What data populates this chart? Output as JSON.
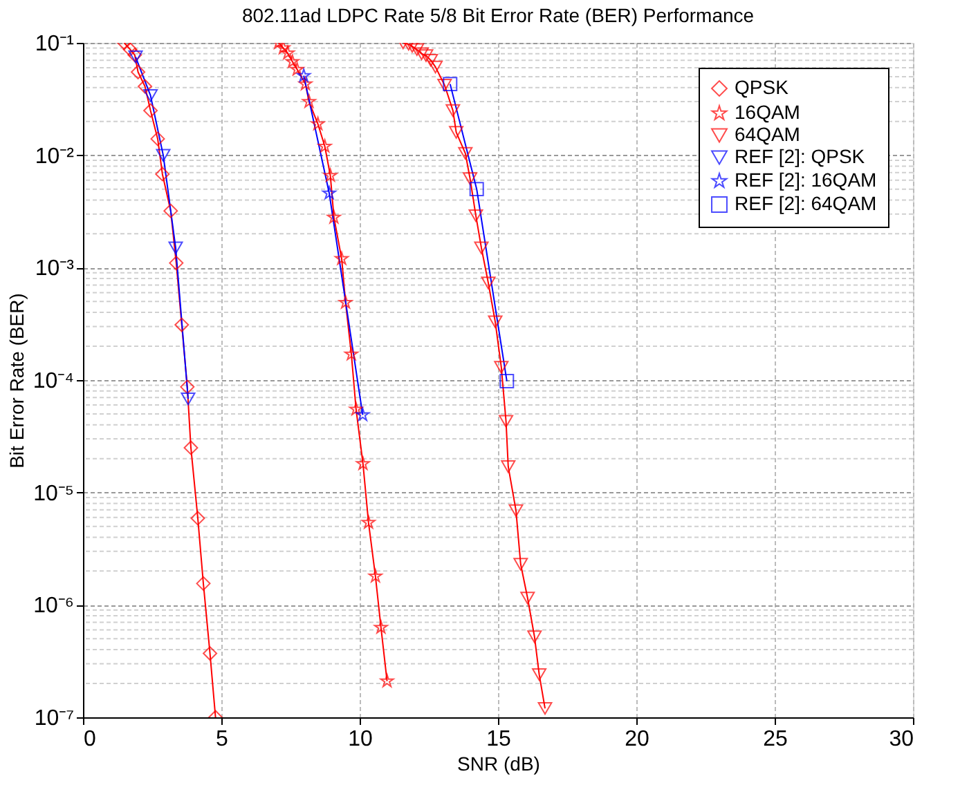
{
  "chart_data": {
    "type": "line",
    "title": "802.11ad LDPC Rate 5/8 Bit Error Rate (BER) Performance",
    "xlabel": "SNR (dB)",
    "ylabel": "Bit Error Rate (BER)",
    "log": "y",
    "grid": true,
    "legend": "top right",
    "xlim": [
      0,
      30
    ],
    "xticks": [
      0,
      5,
      10,
      15,
      20,
      25,
      30
    ],
    "ylim": [
      1e-07,
      0.1
    ],
    "yticks": [
      {
        "value": 1e-07,
        "label": "10⁻⁷"
      },
      {
        "value": 1e-06,
        "label": "10⁻⁶"
      },
      {
        "value": 1e-05,
        "label": "10⁻⁵"
      },
      {
        "value": 0.0001,
        "label": "10⁻⁴"
      },
      {
        "value": 0.001,
        "label": "10⁻³"
      },
      {
        "value": 0.01,
        "label": "10⁻²"
      },
      {
        "value": 0.1,
        "label": "10⁻¹"
      }
    ],
    "series": [
      {
        "name": "QPSK",
        "color": "#ff0000",
        "marker": "diamond",
        "x": [
          1.49,
          1.7,
          1.87,
          1.99,
          2.24,
          2.44,
          2.7,
          2.87,
          3.17,
          3.37,
          3.57,
          3.77,
          3.9,
          4.15,
          4.35,
          4.59,
          4.79
        ],
        "values": [
          0.1,
          0.0875,
          0.078,
          0.055,
          0.041,
          0.025,
          0.014,
          0.0068,
          0.0032,
          0.0011,
          0.00031,
          8.7e-05,
          2.5e-05,
          5.9e-06,
          1.55e-06,
          3.7e-07,
          1e-07
        ]
      },
      {
        "name": "16QAM",
        "color": "#ff0000",
        "marker": "star",
        "x": [
          7.07,
          7.24,
          7.4,
          7.57,
          7.74,
          8.04,
          8.17,
          8.49,
          8.74,
          8.94,
          9.07,
          9.35,
          9.49,
          9.7,
          9.87,
          10.12,
          10.32,
          10.57,
          10.77,
          10.99
        ],
        "values": [
          0.1,
          0.09,
          0.081,
          0.068,
          0.058,
          0.043,
          0.03,
          0.019,
          0.012,
          0.0066,
          0.0028,
          0.0012,
          0.00049,
          0.00017,
          5.5e-05,
          1.8e-05,
          5.4e-06,
          1.8e-06,
          6.3e-07,
          2.1e-07
        ]
      },
      {
        "name": "64QAM",
        "color": "#ff0000",
        "marker": "triangle",
        "x": [
          11.57,
          11.77,
          11.9,
          12.07,
          12.24,
          12.4,
          12.57,
          12.74,
          13.07,
          13.37,
          13.49,
          13.82,
          13.99,
          14.2,
          14.4,
          14.65,
          14.9,
          15.12,
          15.29,
          15.37,
          15.65,
          15.82,
          16.07,
          16.32,
          16.49,
          16.7
        ],
        "values": [
          0.1,
          0.097,
          0.093,
          0.087,
          0.08,
          0.077,
          0.07,
          0.061,
          0.042,
          0.025,
          0.016,
          0.0104,
          0.0062,
          0.0029,
          0.0015,
          0.00073,
          0.00033,
          0.00013,
          4.3e-05,
          1.7e-05,
          6.9e-06,
          2.3e-06,
          1.15e-06,
          5.2e-07,
          2.4e-07,
          1.2e-07
        ]
      },
      {
        "name": "REF [2]: QPSK",
        "color": "#0000ff",
        "marker": "triangle",
        "x": [
          1.9,
          2.44,
          2.9,
          3.35,
          3.8
        ],
        "values": [
          0.075,
          0.034,
          0.01,
          0.0015,
          6.8e-05
        ]
      },
      {
        "name": "REF [2]: 16QAM",
        "color": "#0000ff",
        "marker": "star",
        "x": [
          7.98,
          8.9,
          10.11
        ],
        "values": [
          0.051,
          0.0046,
          4.9e-05
        ]
      },
      {
        "name": "REF [2]: 64QAM",
        "color": "#0000ff",
        "marker": "square",
        "x": [
          13.27,
          14.23,
          15.32
        ],
        "values": [
          0.043,
          0.005,
          9.8e-05
        ]
      }
    ]
  }
}
